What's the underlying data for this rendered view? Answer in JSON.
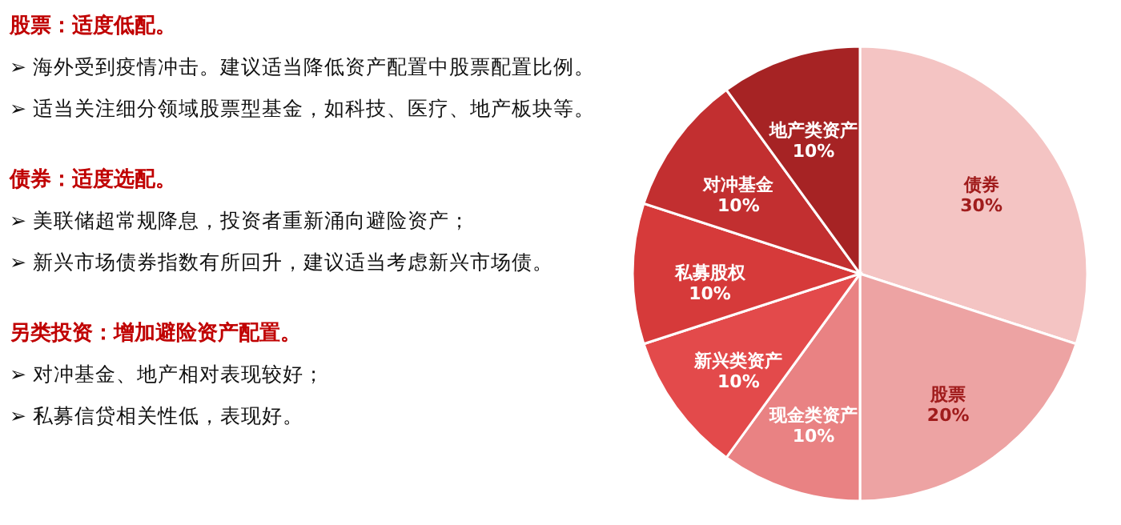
{
  "chart_data": {
    "type": "pie",
    "categories": [
      "债券",
      "股票",
      "现金类资产",
      "新兴类资产",
      "私募股权",
      "对冲基金",
      "地产类资产"
    ],
    "values": [
      30,
      20,
      10,
      10,
      10,
      10,
      10
    ],
    "value_labels": [
      "30%",
      "20%",
      "10%",
      "10%",
      "10%",
      "10%",
      "10%"
    ],
    "colors": [
      "#f4c4c3",
      "#eda3a3",
      "#e98283",
      "#e34a4b",
      "#d63a3a",
      "#c22f30",
      "#a62324"
    ],
    "annotations": [
      "股票：适度低配。",
      "➢ 海外受到疫情冲击。建议适当降低资产配置中股票配置比例。",
      "➢ 适当关注细分领域股票型基金，如科技、医疗、地产板块等。",
      "债券：适度选配。",
      "➢ 美联储超常规降息，投资者重新涌向避险资产；",
      "➢ 新兴市场债券指数有所回升，建议适当考虑新兴市场债。",
      "另类投资：增加避险资产配置。",
      "➢ 对冲基金、地产相对表现较好；",
      "➢ 私募信贷相关性低，表现好。"
    ]
  }
}
